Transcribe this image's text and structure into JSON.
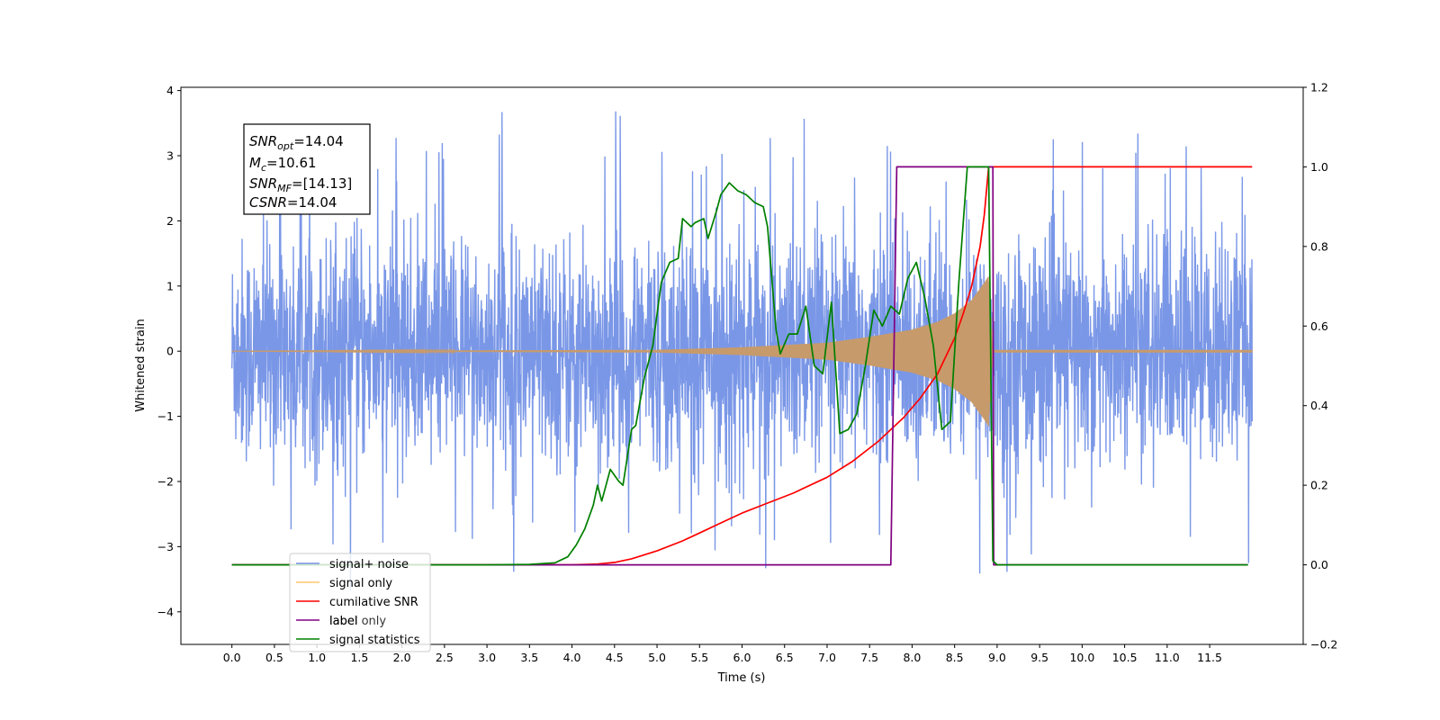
{
  "chart_data": {
    "type": "line",
    "xlabel": "Time (s)",
    "ylabel": "Whitened strain",
    "xlim": [
      -0.6,
      12.6
    ],
    "ylim": [
      -4.5,
      4.05
    ],
    "y2lim": [
      -0.2,
      1.2
    ],
    "x_ticks": [
      "0.0",
      "0.5",
      "1.0",
      "1.5",
      "2.0",
      "2.5",
      "3.0",
      "3.5",
      "4.0",
      "4.5",
      "5.0",
      "5.5",
      "6.0",
      "6.5",
      "7.0",
      "7.5",
      "8.0",
      "8.5",
      "9.0",
      "9.5",
      "10.0",
      "10.5",
      "11.0",
      "11.5"
    ],
    "y_ticks": [
      "4",
      "3",
      "2",
      "1",
      "0",
      "−1",
      "−2",
      "−3",
      "−4"
    ],
    "y2_ticks": [
      "1.2",
      "1.0",
      "0.8",
      "0.6",
      "0.4",
      "0.2",
      "0.0",
      "−0.2"
    ],
    "annotation": {
      "snr_opt": {
        "main": "SNR",
        "sub": "opt",
        "value": "=14.04"
      },
      "mc": {
        "main": "M",
        "sub": "c",
        "value": "=10.61"
      },
      "snr_mf": {
        "main": "SNR",
        "sub": "MF",
        "value": "=[14.13]"
      },
      "csnr": {
        "main": "CSNR",
        "value": "=14.04"
      }
    },
    "legend_loc": "lower left",
    "legend": [
      {
        "label": "signal+ noise",
        "color": "#7694e6"
      },
      {
        "label": "signal only",
        "color": "#ffc56e"
      },
      {
        "label": "cumilative SNR",
        "color": "#ff0000"
      },
      {
        "label": "label",
        "color": "#800080"
      },
      {
        "label": "signal statistics",
        "color": "#008000"
      }
    ],
    "hidden_legend_text": "label only",
    "series": [
      {
        "name": "signal+ noise",
        "axis": "left",
        "color": "#7694e6",
        "t_range": [
          0.0,
          12.0
        ],
        "noise_std": 1.0,
        "spike_max": 3.68,
        "spike_min": -4.1
      },
      {
        "name": "signal only",
        "axis": "left",
        "color": "#c79a6b",
        "envelope": [
          [
            0,
            0
          ],
          [
            5,
            0.02
          ],
          [
            6,
            0.06
          ],
          [
            7,
            0.13
          ],
          [
            7.5,
            0.22
          ],
          [
            8.0,
            0.33
          ],
          [
            8.3,
            0.45
          ],
          [
            8.5,
            0.58
          ],
          [
            8.7,
            0.78
          ],
          [
            8.85,
            1.05
          ],
          [
            8.9,
            1.15
          ],
          [
            8.95,
            0.02
          ],
          [
            12,
            0.02
          ]
        ]
      },
      {
        "name": "cumilative SNR",
        "axis": "right",
        "color": "#ff0000",
        "x": [
          0,
          1,
          2,
          3,
          3.5,
          4.0,
          4.3,
          4.5,
          4.7,
          5.0,
          5.3,
          5.5,
          5.8,
          6.0,
          6.3,
          6.6,
          7.0,
          7.3,
          7.6,
          7.9,
          8.1,
          8.3,
          8.5,
          8.6,
          8.7,
          8.8,
          8.85,
          8.9,
          9.0,
          10,
          11,
          12
        ],
        "y": [
          0,
          0,
          0,
          0,
          0,
          0,
          0.002,
          0.006,
          0.015,
          0.035,
          0.06,
          0.08,
          0.11,
          0.13,
          0.155,
          0.18,
          0.22,
          0.26,
          0.31,
          0.37,
          0.42,
          0.48,
          0.57,
          0.63,
          0.7,
          0.8,
          0.88,
          1.0,
          1.0,
          1.0,
          1.0,
          1.0
        ]
      },
      {
        "name": "label",
        "axis": "right",
        "color": "#800080",
        "x": [
          0,
          7.75,
          7.82,
          8.95,
          8.96,
          11.95
        ],
        "y": [
          0,
          0,
          1,
          1,
          0,
          0
        ]
      },
      {
        "name": "signal statistics",
        "axis": "right",
        "color": "#008000",
        "x": [
          0,
          3.0,
          3.5,
          3.8,
          3.95,
          4.05,
          4.15,
          4.25,
          4.3,
          4.35,
          4.45,
          4.55,
          4.6,
          4.7,
          4.75,
          4.85,
          4.95,
          5.05,
          5.15,
          5.25,
          5.3,
          5.4,
          5.45,
          5.55,
          5.6,
          5.7,
          5.75,
          5.85,
          5.95,
          6.05,
          6.15,
          6.25,
          6.3,
          6.4,
          6.45,
          6.55,
          6.65,
          6.75,
          6.85,
          6.95,
          7.05,
          7.15,
          7.25,
          7.35,
          7.45,
          7.55,
          7.65,
          7.75,
          7.85,
          7.95,
          8.05,
          8.15,
          8.25,
          8.35,
          8.45,
          8.55,
          8.65,
          8.75,
          8.85,
          8.9,
          8.95,
          9.0,
          11.95
        ],
        "y": [
          0,
          0,
          0.001,
          0.005,
          0.02,
          0.05,
          0.09,
          0.15,
          0.2,
          0.16,
          0.24,
          0.21,
          0.2,
          0.34,
          0.35,
          0.47,
          0.55,
          0.71,
          0.76,
          0.77,
          0.87,
          0.85,
          0.86,
          0.87,
          0.82,
          0.89,
          0.93,
          0.96,
          0.94,
          0.93,
          0.91,
          0.9,
          0.85,
          0.59,
          0.53,
          0.58,
          0.58,
          0.65,
          0.5,
          0.48,
          0.66,
          0.33,
          0.34,
          0.38,
          0.5,
          0.64,
          0.6,
          0.65,
          0.63,
          0.72,
          0.76,
          0.67,
          0.55,
          0.34,
          0.36,
          0.71,
          1.0,
          1.0,
          1.0,
          1.0,
          0.01,
          0.0,
          0.0
        ]
      }
    ]
  }
}
